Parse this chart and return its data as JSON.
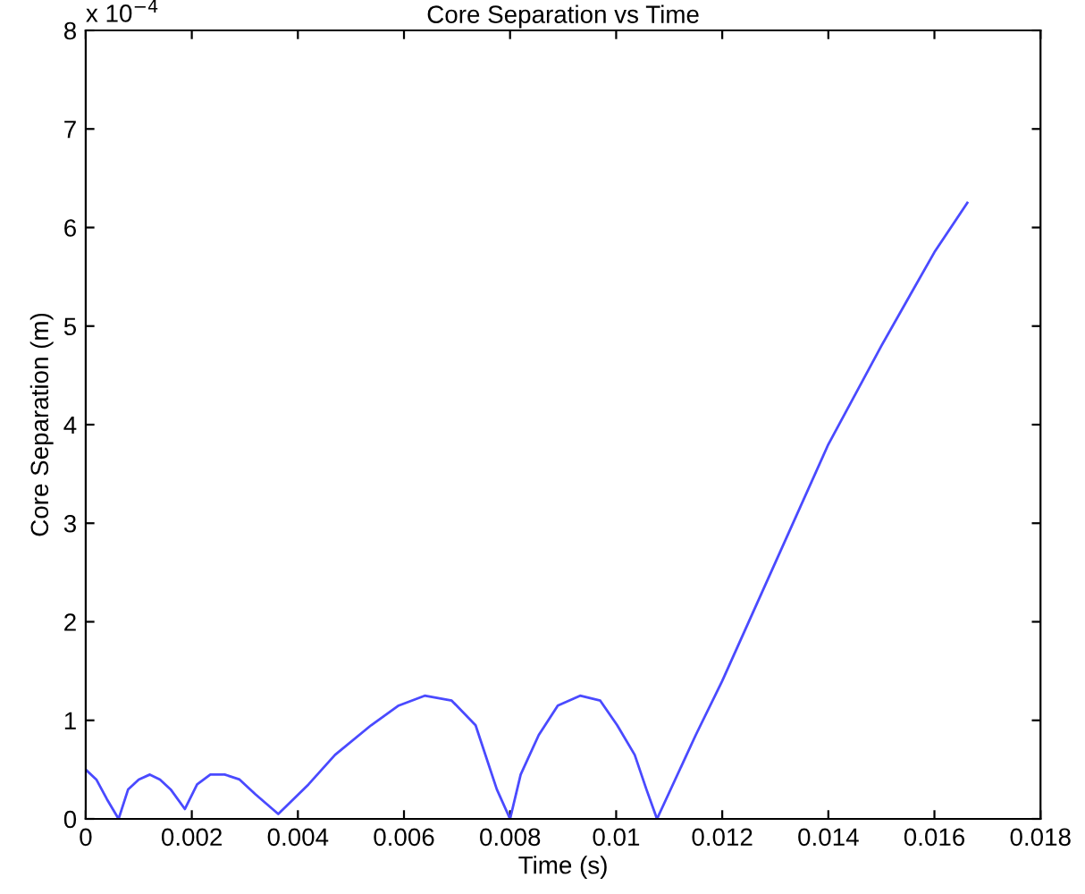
{
  "chart_data": {
    "type": "line",
    "title": "Core Separation vs Time",
    "xlabel": "Time (s)",
    "ylabel": "Core Separation (m)",
    "annotations": [
      "x 10$^{−4}$"
    ],
    "x": [
      0,
      0.0002,
      0.0004,
      0.00062,
      0.0008,
      0.001,
      0.00121,
      0.0014,
      0.0016,
      0.00187,
      0.0021,
      0.00235,
      0.00262,
      0.0029,
      0.0032,
      0.00363,
      0.0042,
      0.0047,
      0.00538,
      0.0059,
      0.00639,
      0.0069,
      0.00735,
      0.00775,
      0.008,
      0.0082,
      0.00854,
      0.0089,
      0.00932,
      0.0097,
      0.01002,
      0.01035,
      0.01057,
      0.01077,
      0.0115,
      0.012,
      0.013,
      0.014,
      0.015,
      0.016,
      0.01662
    ],
    "series": [
      {
        "color": "#4a4aff",
        "values": [
          0.5,
          0.4,
          0.2,
          0,
          0.3,
          0.4,
          0.45,
          0.4,
          0.3,
          0.1,
          0.35,
          0.45,
          0.45,
          0.4,
          0.25,
          0.05,
          0.35,
          0.65,
          0.95,
          1.15,
          1.25,
          1.2,
          0.95,
          0.3,
          0,
          0.45,
          0.85,
          1.15,
          1.25,
          1.2,
          0.95,
          0.65,
          0.3,
          0,
          0.85,
          1.4,
          2.6,
          3.8,
          4.8,
          5.75,
          6.25
        ]
      }
    ],
    "xlim": [
      0,
      0.018
    ],
    "xticks": [
      0,
      0.002,
      0.004,
      0.006,
      0.008,
      0.01,
      0.012,
      0.014,
      0.016,
      0.018
    ],
    "ylim": [
      0,
      8
    ],
    "yticks": [
      0,
      1,
      2,
      3,
      4,
      5,
      6,
      7,
      8
    ],
    "grid": false,
    "legend": false
  }
}
